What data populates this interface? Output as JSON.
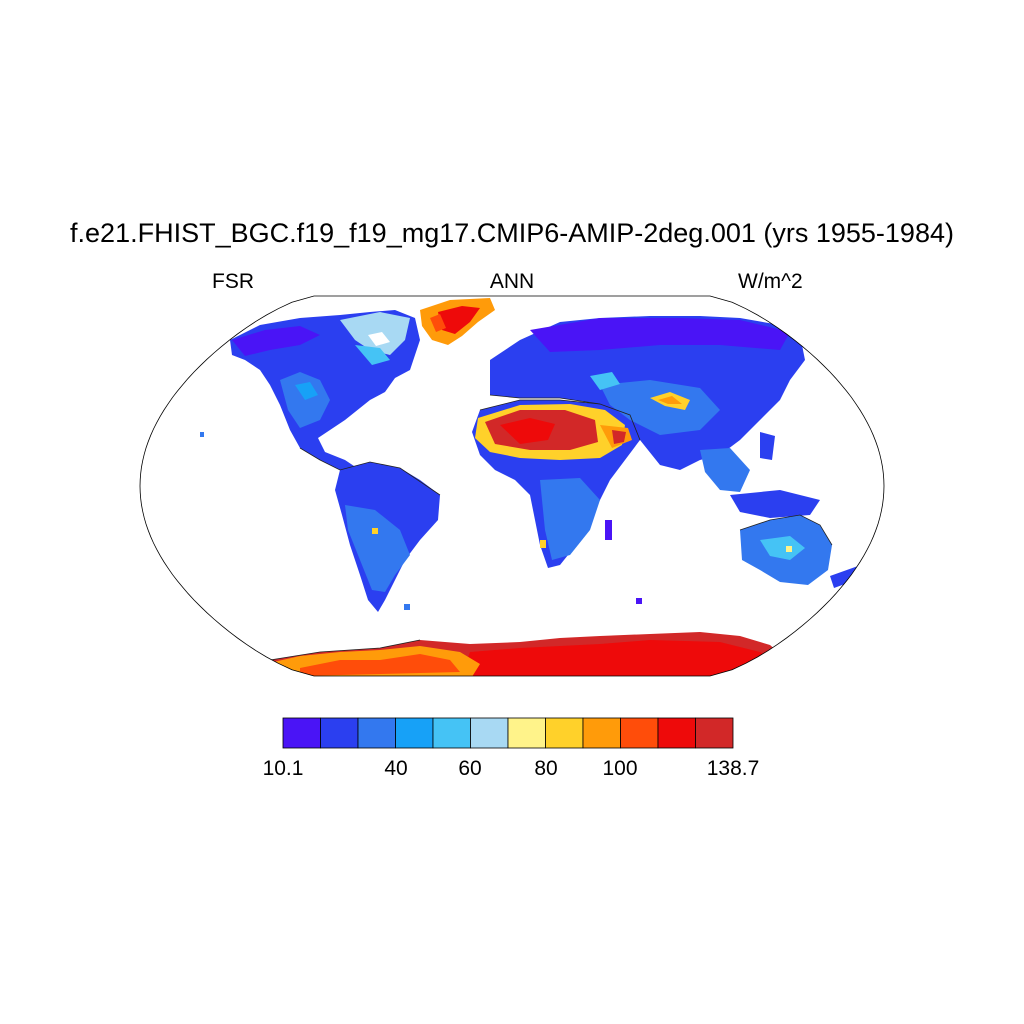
{
  "title": "f.e21.FHIST_BGC.f19_f19_mg17.CMIP6-AMIP-2deg.001 (yrs 1955-1984)",
  "labels": {
    "variable": "FSR",
    "season": "ANN",
    "units": "W/m^2"
  },
  "projection": "Robinson",
  "colorbar": {
    "colors": [
      "#4a14f6",
      "#2b3ff0",
      "#3378ef",
      "#17a1f7",
      "#45c3f5",
      "#a8d9f3",
      "#fff38a",
      "#ffd12a",
      "#ff9b0a",
      "#ff4d0a",
      "#ee0a0a",
      "#d22828"
    ],
    "tick_labels": [
      "10.1",
      "40",
      "60",
      "80",
      "100",
      "138.7"
    ]
  },
  "map_colors": {
    "ocean": "#ffffff",
    "outline": "#000000",
    "coast": "#222222"
  }
}
